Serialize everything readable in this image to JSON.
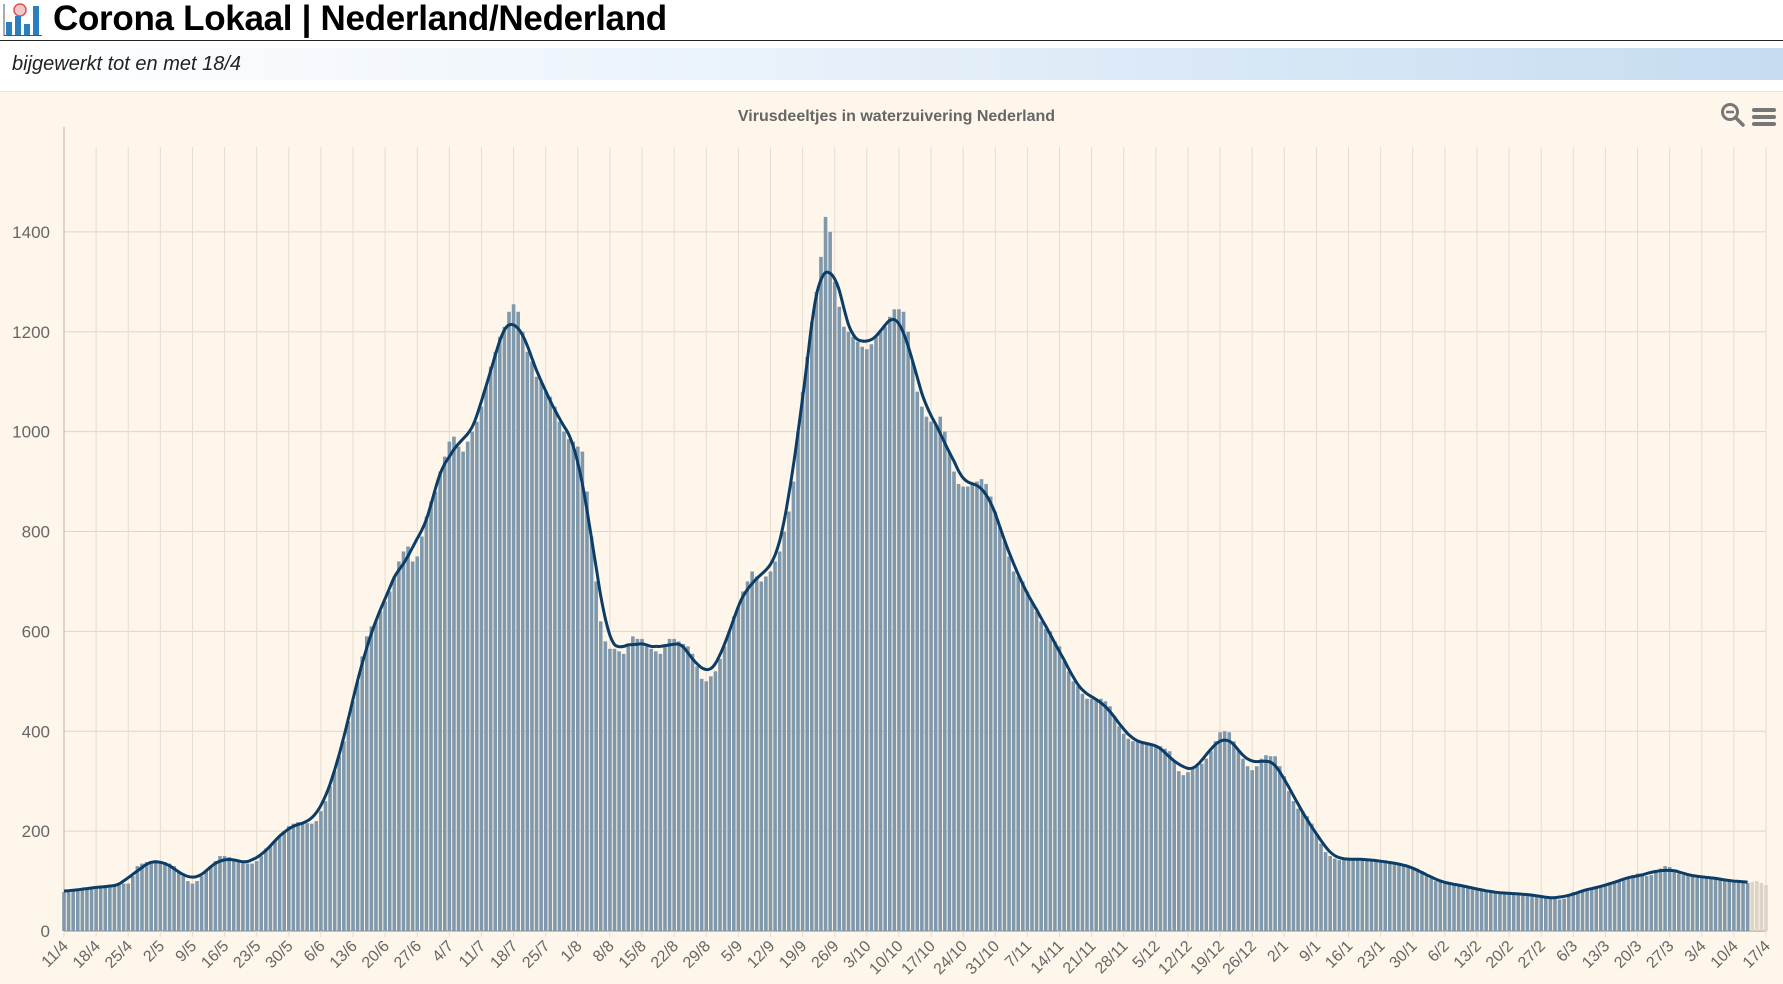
{
  "header": {
    "title": "Corona Lokaal | Nederland/Nederland",
    "logo_icon": "bar-chart-virus-icon"
  },
  "subtitle": "bijgewerkt tot en met 18/4",
  "toolbar": {
    "zoom_icon": "zoom-out-icon",
    "menu_icon": "hamburger-menu-icon"
  },
  "colors": {
    "bar": "#7f98ac",
    "bar_provisional": "#dcd4c6",
    "line": "#0b3d66",
    "background": "#fef6ea"
  },
  "chart_data": {
    "type": "bar",
    "title": "Virusdeeltjes in waterzuivering Nederland",
    "xlabel": "",
    "ylabel": "",
    "ylim": [
      0,
      1570
    ],
    "yticks": [
      0,
      200,
      400,
      600,
      800,
      1000,
      1200,
      1400
    ],
    "grid": true,
    "xticks": [
      "11/4",
      "18/4",
      "25/4",
      "2/5",
      "9/5",
      "16/5",
      "23/5",
      "30/5",
      "6/6",
      "13/6",
      "20/6",
      "27/6",
      "4/7",
      "11/7",
      "18/7",
      "25/7",
      "1/8",
      "8/8",
      "15/8",
      "22/8",
      "29/8",
      "5/9",
      "12/9",
      "19/9",
      "26/9",
      "3/10",
      "10/10",
      "17/10",
      "24/10",
      "31/10",
      "7/11",
      "14/11",
      "21/11",
      "28/11",
      "5/12",
      "12/12",
      "19/12",
      "26/12",
      "2/1",
      "9/1",
      "16/1",
      "23/1",
      "30/1",
      "6/2",
      "13/2",
      "20/2",
      "27/2",
      "6/3",
      "13/3",
      "20/3",
      "27/3",
      "3/4",
      "10/4",
      "17/4"
    ],
    "provisional_last": 4,
    "series": [
      {
        "type": "bar",
        "values": [
          78,
          80,
          80,
          82,
          84,
          86,
          87,
          88,
          88,
          88,
          90,
          90,
          92,
          95,
          95,
          110,
          130,
          135,
          138,
          140,
          142,
          140,
          138,
          135,
          130,
          120,
          110,
          100,
          95,
          100,
          110,
          120,
          130,
          140,
          150,
          150,
          148,
          140,
          138,
          136,
          135,
          135,
          140,
          150,
          165,
          170,
          180,
          190,
          200,
          210,
          215,
          218,
          218,
          216,
          215,
          220,
          240,
          260,
          290,
          320,
          350,
          380,
          420,
          460,
          500,
          550,
          590,
          610,
          620,
          640,
          660,
          680,
          710,
          740,
          760,
          770,
          740,
          750,
          790,
          830,
          860,
          880,
          920,
          950,
          980,
          990,
          970,
          960,
          980,
          1000,
          1020,
          1050,
          1090,
          1130,
          1160,
          1190,
          1210,
          1240,
          1255,
          1240,
          1200,
          1160,
          1140,
          1110,
          1100,
          1080,
          1070,
          1050,
          1020,
          1000,
          985,
          980,
          970,
          960,
          880,
          790,
          700,
          620,
          580,
          565,
          565,
          560,
          555,
          570,
          590,
          585,
          585,
          570,
          565,
          560,
          555,
          570,
          585,
          585,
          580,
          575,
          570,
          555,
          530,
          505,
          500,
          510,
          520,
          545,
          570,
          600,
          630,
          650,
          680,
          700,
          720,
          710,
          700,
          710,
          720,
          740,
          760,
          800,
          840,
          900,
          1000,
          1080,
          1150,
          1220,
          1280,
          1350,
          1430,
          1400,
          1300,
          1250,
          1210,
          1200,
          1190,
          1180,
          1170,
          1165,
          1175,
          1190,
          1200,
          1210,
          1230,
          1245,
          1245,
          1240,
          1200,
          1140,
          1080,
          1050,
          1030,
          1020,
          1015,
          1030,
          1000,
          960,
          920,
          895,
          890,
          890,
          895,
          900,
          905,
          895,
          870,
          840,
          810,
          780,
          750,
          720,
          710,
          700,
          680,
          660,
          640,
          620,
          605,
          600,
          580,
          570,
          540,
          520,
          500,
          490,
          475,
          465,
          465,
          465,
          465,
          460,
          450,
          430,
          410,
          395,
          385,
          380,
          380,
          378,
          376,
          372,
          372,
          370,
          365,
          360,
          340,
          320,
          312,
          318,
          325,
          330,
          335,
          345,
          360,
          380,
          398,
          400,
          398,
          380,
          360,
          345,
          330,
          322,
          330,
          345,
          352,
          350,
          350,
          330,
          310,
          280,
          260,
          245,
          240,
          230,
          215,
          195,
          175,
          158,
          150,
          145,
          142,
          142,
          145,
          145,
          145,
          144,
          143,
          142,
          140,
          140,
          140,
          138,
          136,
          134,
          132,
          130,
          128,
          125,
          120,
          112,
          105,
          100,
          98,
          97,
          96,
          94,
          92,
          90,
          88,
          86,
          85,
          82,
          80,
          78,
          77,
          76,
          76,
          75,
          75,
          75,
          74,
          73,
          72,
          71,
          70,
          68,
          66,
          64,
          63,
          65,
          72,
          78,
          78,
          80,
          82,
          84,
          88,
          90,
          92,
          94,
          96,
          100,
          104,
          108,
          112,
          115,
          112,
          110,
          112,
          118,
          125,
          130,
          128,
          122,
          115,
          112,
          112,
          110,
          110,
          110,
          108,
          106,
          104,
          104,
          103,
          102,
          100,
          98,
          97,
          96,
          98,
          100,
          96,
          92
        ]
      }
    ]
  }
}
